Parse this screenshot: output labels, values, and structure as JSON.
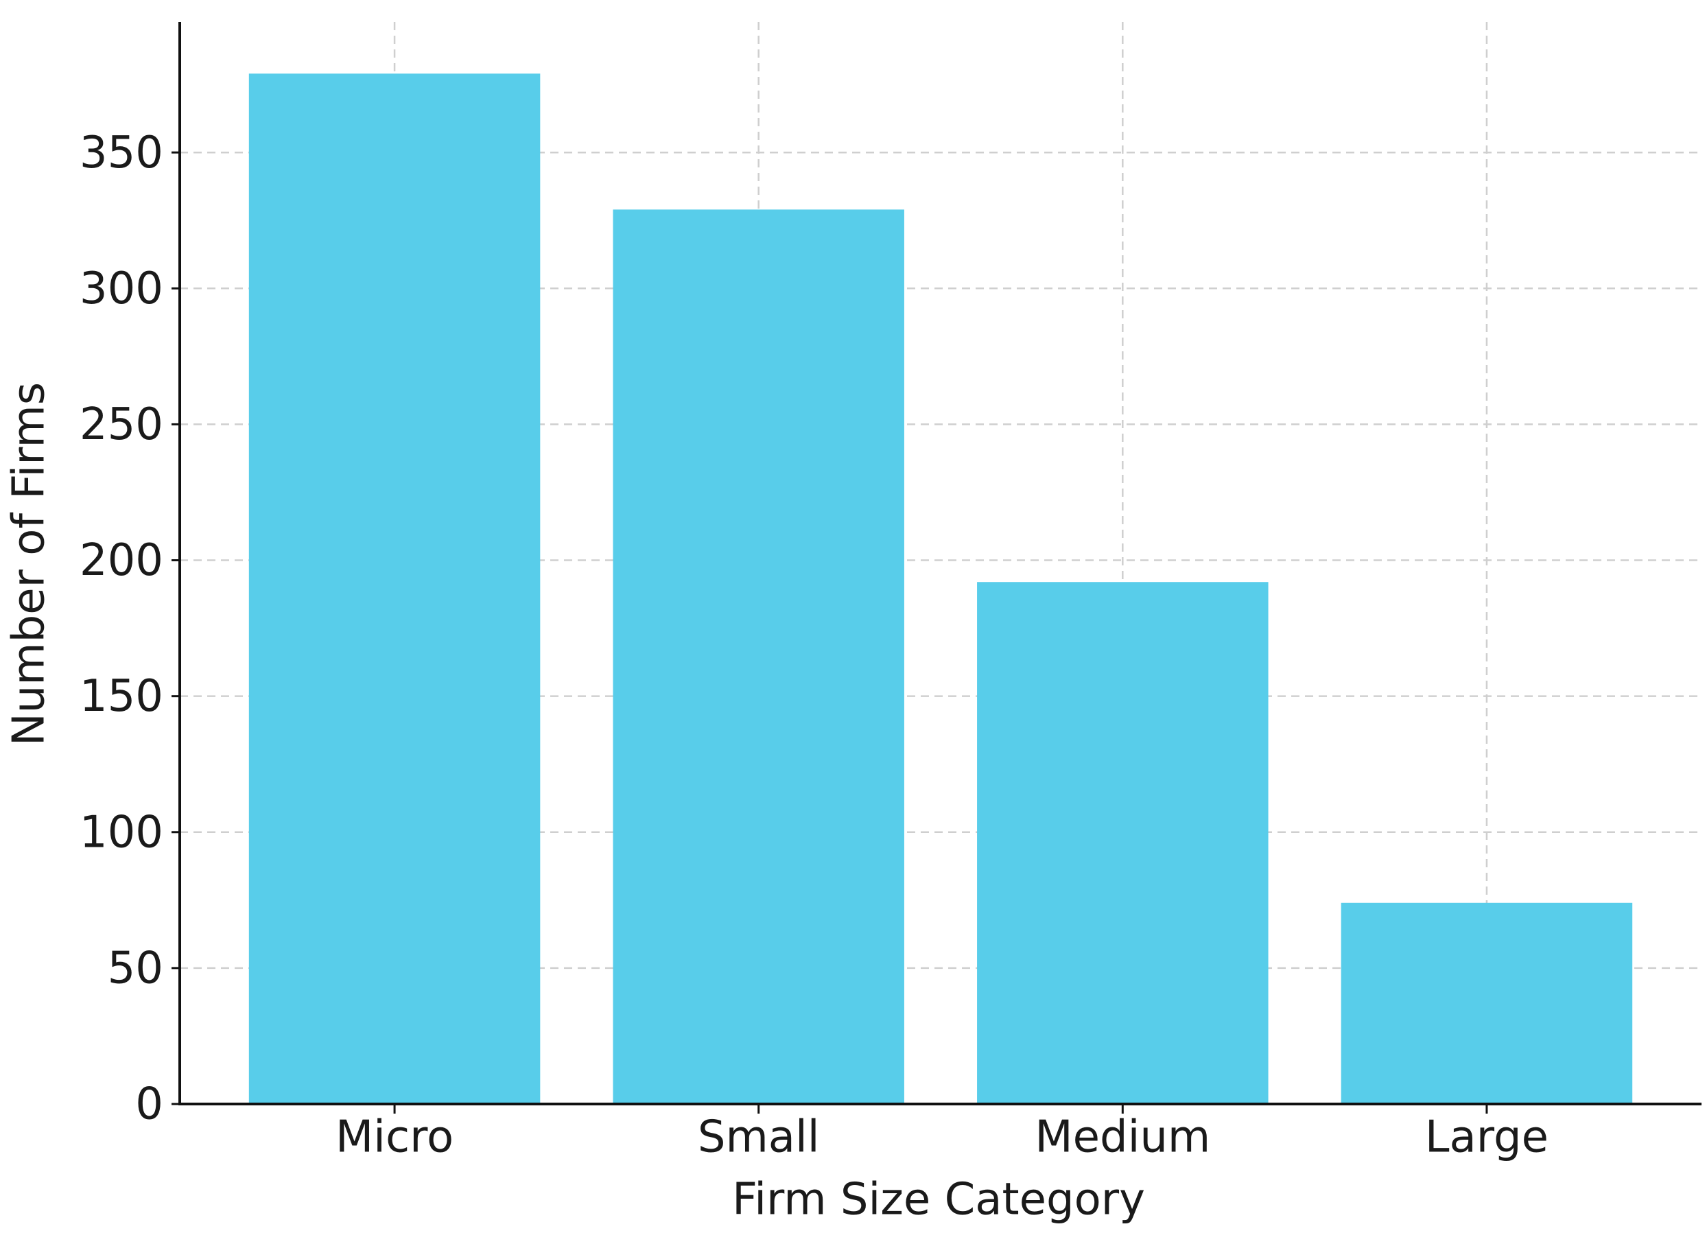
{
  "chart_data": {
    "type": "bar",
    "x_label": "Firm Size Category",
    "y_label": "Number of Firms",
    "categories": [
      "Micro",
      "Small",
      "Medium",
      "Large"
    ],
    "values": [
      379,
      329,
      192,
      74
    ],
    "color": "#58cdea",
    "ylim": [
      0,
      398
    ],
    "yticks": [
      0,
      50,
      100,
      150,
      200,
      250,
      300,
      350
    ],
    "grid": true
  }
}
